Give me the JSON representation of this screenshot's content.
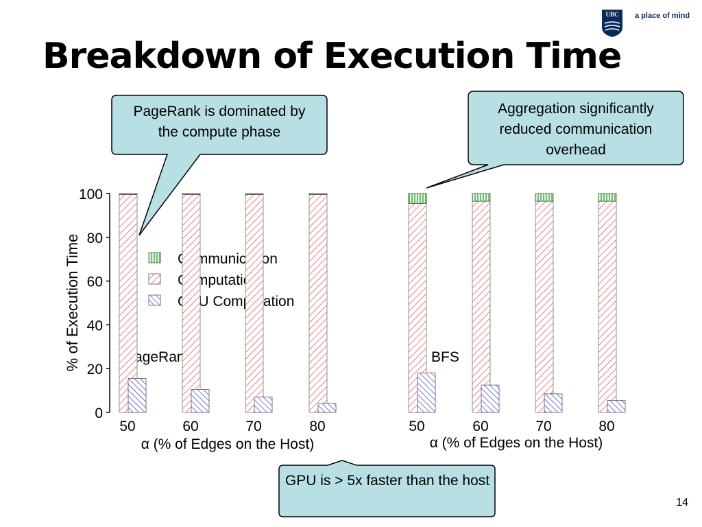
{
  "slide": {
    "title": "Breakdown of Execution Time",
    "page_number": "14",
    "brand_crest_text": "UBC",
    "brand_motto": "a place of mind"
  },
  "callouts": {
    "pagerank": "PageRank is dominated by the compute phase",
    "aggregation": "Aggregation significantly reduced communication overhead",
    "gpu": "GPU is > 5x faster than the host"
  },
  "colors": {
    "communication": "#2e9e2e",
    "computation": "#e06060",
    "gpu_computation": "#3a3ad0",
    "callout_fill": "#b8dfe3"
  },
  "chart_data": [
    {
      "type": "bar",
      "title": "PageRank",
      "xlabel": "α (% of Edges on the Host)",
      "ylabel": "% of Execution Time",
      "ylim": [
        0,
        100
      ],
      "yticks": [
        0,
        20,
        40,
        60,
        80,
        100
      ],
      "categories": [
        "50",
        "60",
        "70",
        "80"
      ],
      "series": [
        {
          "name": "Communication",
          "values": [
            0.5,
            0.5,
            0.5,
            0.5
          ]
        },
        {
          "name": "Computation",
          "values": [
            99.5,
            99.5,
            99.5,
            99.5
          ]
        },
        {
          "name": "GPU Computation",
          "values": [
            15.5,
            10.5,
            7,
            4
          ]
        }
      ],
      "legend": "left",
      "grid": false
    },
    {
      "type": "bar",
      "title": "BFS",
      "xlabel": "α (% of Edges on the Host)",
      "ylabel": "",
      "ylim": [
        0,
        100
      ],
      "categories": [
        "50",
        "60",
        "70",
        "80"
      ],
      "series": [
        {
          "name": "Communication",
          "values": [
            4.5,
            3.5,
            3.5,
            3.5
          ]
        },
        {
          "name": "Computation",
          "values": [
            95.5,
            96.5,
            96.5,
            96.5
          ]
        },
        {
          "name": "GPU Computation",
          "values": [
            18,
            12.5,
            8.5,
            5.5
          ]
        }
      ],
      "grid": false
    }
  ]
}
